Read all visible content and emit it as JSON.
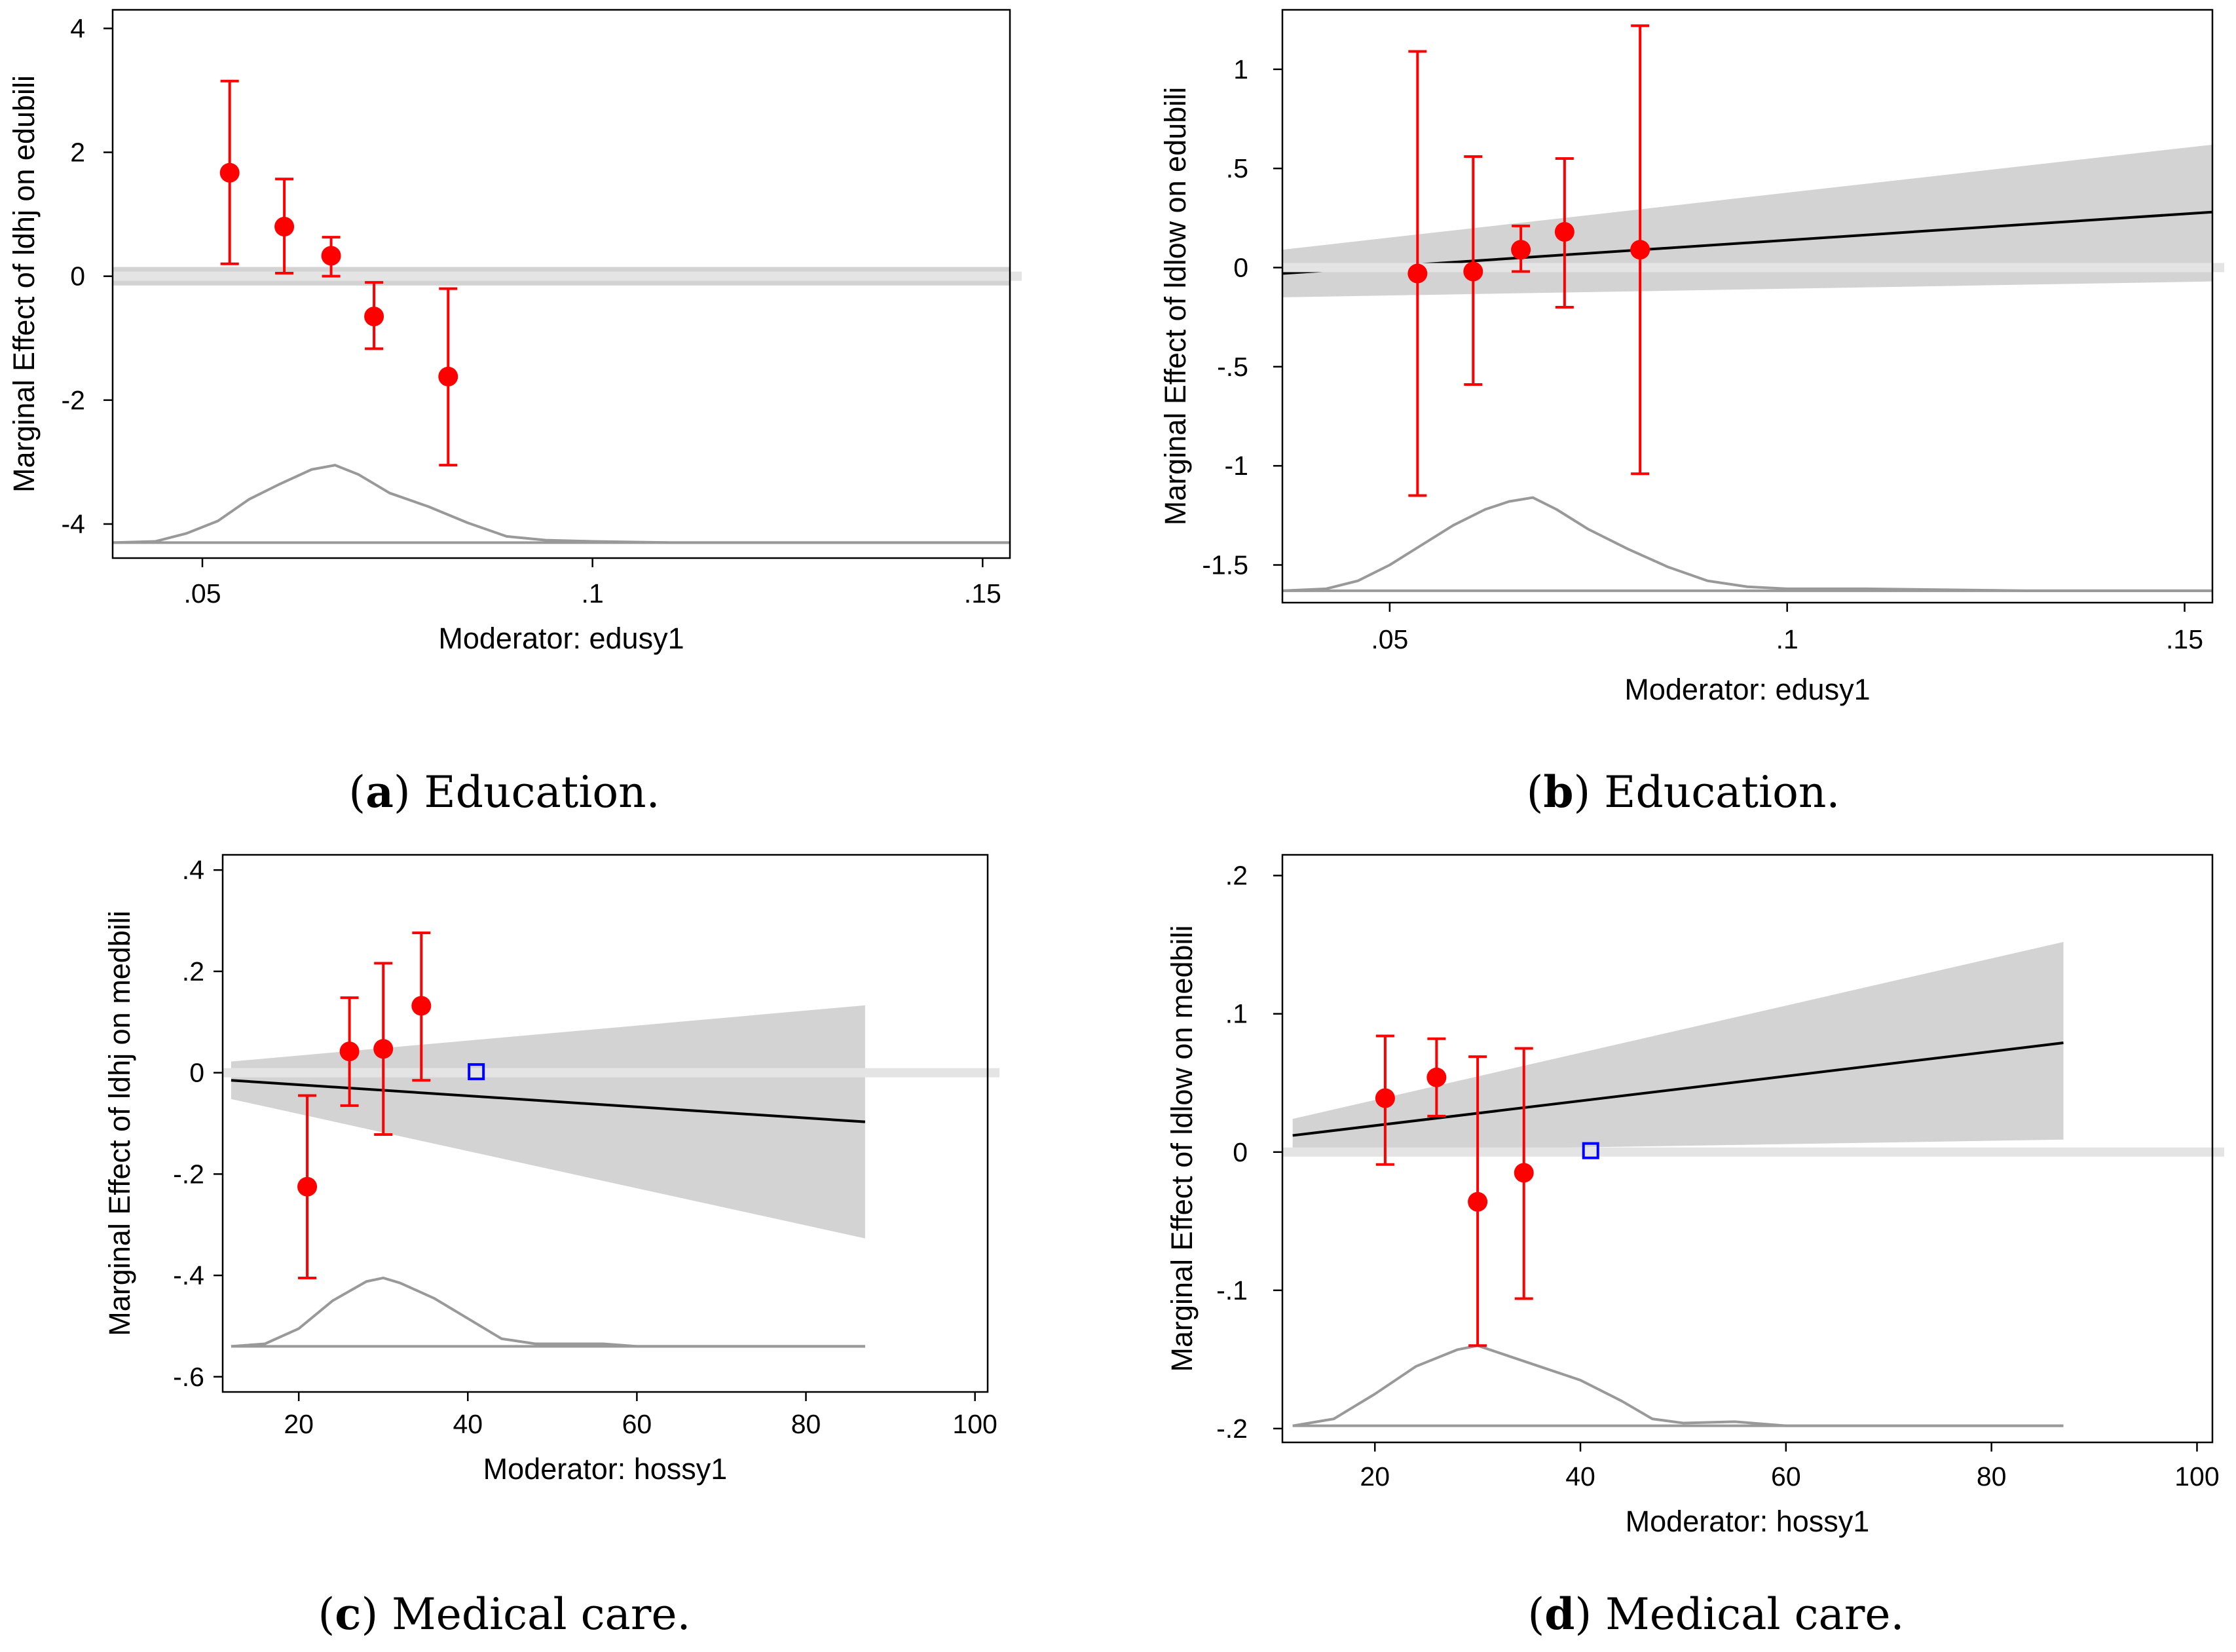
{
  "chart_data": [
    {
      "id": "a",
      "type": "scatter",
      "ylabel": "Marginal Effect of ldhj on edubili",
      "xlabel": "Moderator: edusy1",
      "xlim": [
        0.0385,
        0.1535
      ],
      "ylim": [
        -4.55,
        4.3
      ],
      "xticks": [
        0.05,
        0.1,
        0.15
      ],
      "xtick_labels": [
        ".05",
        ".1",
        ".15"
      ],
      "yticks": [
        4,
        2,
        0,
        -2,
        -4
      ],
      "ytick_labels": [
        "4",
        "2",
        "0",
        "-2",
        "-4"
      ],
      "line": {
        "x": [
          0.0385,
          0.1535
        ],
        "y": [
          0.0,
          0.0
        ]
      },
      "ci_band": {
        "x": [
          0.0385,
          0.1535
        ],
        "upper": [
          0.15,
          0.15
        ],
        "lower": [
          -0.15,
          -0.15
        ]
      },
      "points": [
        {
          "x": 0.0535,
          "y": 1.67,
          "lo": 0.2,
          "hi": 3.15
        },
        {
          "x": 0.0605,
          "y": 0.8,
          "lo": 0.05,
          "hi": 1.57
        },
        {
          "x": 0.0665,
          "y": 0.33,
          "lo": 0.0,
          "hi": 0.63
        },
        {
          "x": 0.072,
          "y": -0.65,
          "lo": -1.17,
          "hi": -0.1
        },
        {
          "x": 0.0815,
          "y": -1.62,
          "lo": -3.05,
          "hi": -0.2
        }
      ],
      "density": {
        "x": [
          0.0385,
          0.044,
          0.048,
          0.052,
          0.056,
          0.06,
          0.064,
          0.067,
          0.07,
          0.074,
          0.079,
          0.084,
          0.089,
          0.094,
          0.1,
          0.11,
          0.13,
          0.1535
        ],
        "y": [
          -4.3,
          -4.28,
          -4.15,
          -3.95,
          -3.6,
          -3.35,
          -3.12,
          -3.05,
          -3.2,
          -3.5,
          -3.72,
          -3.98,
          -4.2,
          -4.26,
          -4.28,
          -4.3,
          -4.3,
          -4.3
        ]
      },
      "density_base": -4.3
    },
    {
      "id": "b",
      "type": "scatter",
      "ylabel": "Marginal Effect of ldlow on edubili",
      "xlabel": "Moderator: edusy1",
      "xlim": [
        0.0365,
        0.1535
      ],
      "ylim": [
        -1.69,
        1.3
      ],
      "xticks": [
        0.05,
        0.1,
        0.15
      ],
      "xtick_labels": [
        ".05",
        ".1",
        ".15"
      ],
      "yticks": [
        1,
        0.5,
        0,
        -0.5,
        -1,
        -1.5
      ],
      "ytick_labels": [
        "1",
        ".5",
        "0",
        "-.5",
        "-1",
        "-1.5"
      ],
      "line": {
        "x": [
          0.0365,
          0.1535
        ],
        "y": [
          -0.03,
          0.28
        ]
      },
      "ci_band": {
        "x": [
          0.0365,
          0.1535
        ],
        "upper": [
          0.09,
          0.62
        ],
        "lower": [
          -0.15,
          -0.07
        ]
      },
      "points": [
        {
          "x": 0.0535,
          "y": -0.03,
          "lo": -1.15,
          "hi": 1.09
        },
        {
          "x": 0.0605,
          "y": -0.02,
          "lo": -0.59,
          "hi": 0.56
        },
        {
          "x": 0.0665,
          "y": 0.09,
          "lo": -0.02,
          "hi": 0.21
        },
        {
          "x": 0.072,
          "y": 0.18,
          "lo": -0.2,
          "hi": 0.55
        },
        {
          "x": 0.0815,
          "y": 0.09,
          "lo": -1.04,
          "hi": 1.22
        }
      ],
      "density": {
        "x": [
          0.0365,
          0.042,
          0.046,
          0.05,
          0.054,
          0.058,
          0.062,
          0.065,
          0.068,
          0.071,
          0.075,
          0.08,
          0.085,
          0.09,
          0.095,
          0.1,
          0.11,
          0.13,
          0.1535
        ],
        "y": [
          -1.63,
          -1.62,
          -1.58,
          -1.5,
          -1.4,
          -1.3,
          -1.22,
          -1.18,
          -1.16,
          -1.22,
          -1.32,
          -1.42,
          -1.51,
          -1.58,
          -1.61,
          -1.62,
          -1.62,
          -1.63,
          -1.63
        ]
      },
      "density_base": -1.63
    },
    {
      "id": "c",
      "type": "scatter",
      "ylabel": "Marginal Effect of ldhj on medbili",
      "xlabel": "Moderator: hossy1",
      "xlim": [
        11,
        101.5
      ],
      "ylim": [
        -0.63,
        0.43
      ],
      "xticks": [
        20,
        40,
        60,
        80,
        100
      ],
      "xtick_labels": [
        "20",
        "40",
        "60",
        "80",
        "100"
      ],
      "yticks": [
        0.4,
        0.2,
        0,
        -0.2,
        -0.4,
        -0.6
      ],
      "ytick_labels": [
        ".4",
        ".2",
        "0",
        "-.2",
        "-.4",
        "-.6"
      ],
      "line": {
        "x": [
          12,
          87
        ],
        "y": [
          -0.015,
          -0.097
        ]
      },
      "ci_band": {
        "x": [
          12,
          87
        ],
        "upper": [
          0.022,
          0.133
        ],
        "lower": [
          -0.052,
          -0.327
        ]
      },
      "points": [
        {
          "x": 21,
          "y": -0.225,
          "lo": -0.405,
          "hi": -0.045
        },
        {
          "x": 26,
          "y": 0.042,
          "lo": -0.065,
          "hi": 0.148
        },
        {
          "x": 30,
          "y": 0.047,
          "lo": -0.122,
          "hi": 0.216
        },
        {
          "x": 34.5,
          "y": 0.132,
          "lo": -0.015,
          "hi": 0.276
        }
      ],
      "marker": {
        "x": 41,
        "y": 0.002
      },
      "density": {
        "x": [
          12,
          16,
          20,
          24,
          28,
          30,
          32,
          36,
          40,
          44,
          48,
          56,
          60,
          70,
          87
        ],
        "y": [
          -0.54,
          -0.535,
          -0.505,
          -0.45,
          -0.412,
          -0.405,
          -0.415,
          -0.445,
          -0.485,
          -0.525,
          -0.535,
          -0.535,
          -0.54,
          -0.54,
          -0.54
        ]
      },
      "density_base": -0.54
    },
    {
      "id": "d",
      "type": "scatter",
      "ylabel": "Marginal Effect of ldlow on medbili",
      "xlabel": "Moderator: hossy1",
      "xlim": [
        11,
        101.5
      ],
      "ylim": [
        -0.21,
        0.215
      ],
      "xticks": [
        20,
        40,
        60,
        80,
        100
      ],
      "xtick_labels": [
        "20",
        "40",
        "60",
        "80",
        "100"
      ],
      "yticks": [
        0.2,
        0.1,
        0,
        -0.1,
        -0.2
      ],
      "ytick_labels": [
        ".2",
        ".1",
        "0",
        "-.1",
        "-.2"
      ],
      "line": {
        "x": [
          12,
          87
        ],
        "y": [
          0.012,
          0.079
        ]
      },
      "ci_band": {
        "x": [
          12,
          87
        ],
        "upper": [
          0.024,
          0.152
        ],
        "lower": [
          0.0,
          0.009
        ]
      },
      "points": [
        {
          "x": 21,
          "y": 0.039,
          "lo": -0.009,
          "hi": 0.084
        },
        {
          "x": 26,
          "y": 0.054,
          "lo": 0.026,
          "hi": 0.082
        },
        {
          "x": 30,
          "y": -0.036,
          "lo": -0.14,
          "hi": 0.069
        },
        {
          "x": 34.5,
          "y": -0.015,
          "lo": -0.106,
          "hi": 0.075
        }
      ],
      "marker": {
        "x": 41,
        "y": 0.001
      },
      "density": {
        "x": [
          12,
          16,
          20,
          24,
          28,
          30,
          32,
          36,
          40,
          44,
          47,
          50,
          55,
          60,
          70,
          87
        ],
        "y": [
          -0.198,
          -0.193,
          -0.175,
          -0.155,
          -0.143,
          -0.14,
          -0.145,
          -0.155,
          -0.165,
          -0.18,
          -0.193,
          -0.196,
          -0.195,
          -0.198,
          -0.198,
          -0.198
        ]
      },
      "density_base": -0.198
    }
  ],
  "captions": {
    "a": {
      "letter": "a",
      "text": " Education."
    },
    "b": {
      "letter": "b",
      "text": " Education."
    },
    "c": {
      "letter": "c",
      "text": " Medical care."
    },
    "d": {
      "letter": "d",
      "text": " Medical care."
    }
  }
}
